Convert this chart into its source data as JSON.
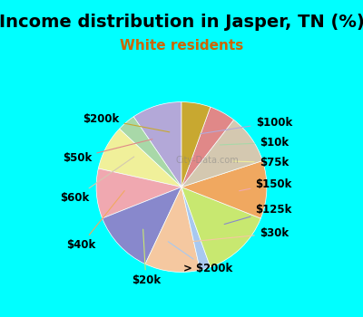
{
  "title": "Income distribution in Jasper, TN (%)",
  "subtitle": "White residents",
  "title_color": "#000000",
  "subtitle_color": "#cc6600",
  "background_top": "#00ffff",
  "background_chart": "#e8f5f0",
  "watermark": "City-Data.com",
  "labels": [
    "$100k",
    "$10k",
    "$75k",
    "$150k",
    "$125k",
    "$30k",
    "> $200k",
    "$20k",
    "$40k",
    "$60k",
    "$50k",
    "$200k"
  ],
  "values": [
    9.5,
    3.5,
    8.5,
    9.5,
    12.0,
    10.5,
    2.0,
    13.5,
    11.0,
    9.5,
    5.0,
    5.5
  ],
  "colors": [
    "#b3a8d8",
    "#a8d8a8",
    "#f0f09a",
    "#f0a8b0",
    "#8888cc",
    "#f5c8a0",
    "#a8c8f0",
    "#c8e870",
    "#f0a860",
    "#d4c8b0",
    "#e08888",
    "#c8a830"
  ],
  "startangle": 90,
  "label_fontsize": 8.5,
  "title_fontsize": 14,
  "subtitle_fontsize": 11
}
